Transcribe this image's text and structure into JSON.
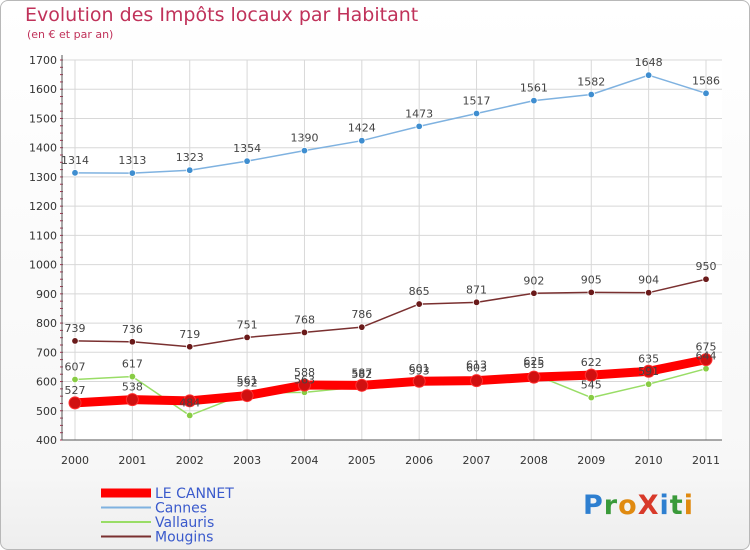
{
  "title": "Evolution des Impôts locaux par Habitant",
  "subtitle": "(en € et par an)",
  "logo": "ProXiti",
  "logo_letters": [
    {
      "ch": "P",
      "color": "#2e7fd0"
    },
    {
      "ch": "r",
      "color": "#3a9a3a"
    },
    {
      "ch": "o",
      "color": "#e08a10"
    },
    {
      "ch": "X",
      "color": "#d83a2a"
    },
    {
      "ch": "i",
      "color": "#2e7fd0"
    },
    {
      "ch": "t",
      "color": "#3a9a3a"
    },
    {
      "ch": "i",
      "color": "#e08a10"
    }
  ],
  "chart_data": {
    "type": "line",
    "title": "Evolution des Impôts locaux par Habitant",
    "subtitle": "(en € et par an)",
    "xlabel": "",
    "ylabel": "",
    "categories": [
      "2000",
      "2001",
      "2002",
      "2003",
      "2004",
      "2005",
      "2006",
      "2007",
      "2008",
      "2009",
      "2010",
      "2011"
    ],
    "ylim": [
      400,
      1700
    ],
    "yticks": [
      400,
      500,
      600,
      700,
      800,
      900,
      1000,
      1100,
      1200,
      1300,
      1400,
      1500,
      1600,
      1700
    ],
    "legend_position": "bottom-left",
    "series": [
      {
        "name": "LE CANNET",
        "color": "#ff0000",
        "marker": "#d01010",
        "heavy": true,
        "values": [
          527,
          538,
          534,
          552,
          588,
          587,
          601,
          603,
          615,
          622,
          635,
          675
        ],
        "labels": [
          "527",
          "538",
          "",
          "552",
          "588",
          "587",
          "601",
          "603",
          "615",
          "622",
          "635",
          "675"
        ]
      },
      {
        "name": "Cannes",
        "color": "#7fb2e0",
        "marker": "#3f8ed0",
        "heavy": false,
        "values": [
          1314,
          1313,
          1323,
          1354,
          1390,
          1424,
          1473,
          1517,
          1561,
          1582,
          1648,
          1586
        ],
        "labels": [
          "1314",
          "1313",
          "1323",
          "1354",
          "1390",
          "1424",
          "1473",
          "1517",
          "1561",
          "1582",
          "1648",
          "1586"
        ]
      },
      {
        "name": "Vallauris",
        "color": "#99dd66",
        "marker": "#88cc44",
        "heavy": false,
        "values": [
          607,
          617,
          484,
          561,
          563,
          582,
          593,
          613,
          625,
          545,
          591,
          644
        ],
        "labels": [
          "607",
          "617",
          "484",
          "561",
          "563",
          "582",
          "593",
          "613",
          "625",
          "545",
          "591",
          "644"
        ]
      },
      {
        "name": "Mougins",
        "color": "#7a3030",
        "marker": "#6a1a1a",
        "heavy": false,
        "values": [
          739,
          736,
          719,
          751,
          768,
          786,
          865,
          871,
          902,
          905,
          904,
          950
        ],
        "labels": [
          "739",
          "736",
          "719",
          "751",
          "768",
          "786",
          "865",
          "871",
          "902",
          "905",
          "904",
          "950"
        ]
      }
    ]
  }
}
